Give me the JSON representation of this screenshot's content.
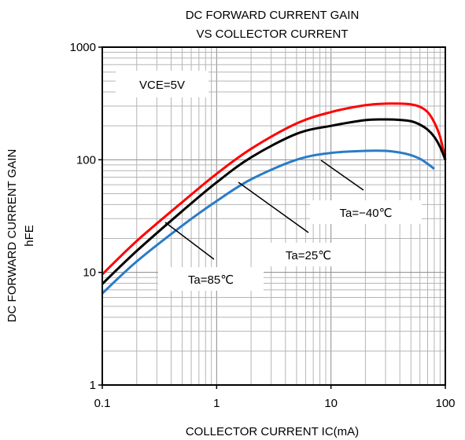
{
  "chart_data": {
    "type": "line",
    "title_lines": [
      "DC FORWARD CURRENT GAIN",
      "VS COLLECTOR CURRENT"
    ],
    "xlabel": "COLLECTOR CURRENT  IC(mA)",
    "ylabel_lines": [
      "DC FORWARD CURRENT GAIN",
      "hFE"
    ],
    "x_scale": "log",
    "y_scale": "log",
    "xlim": [
      0.1,
      100
    ],
    "ylim": [
      1,
      1000
    ],
    "x_ticks": [
      "0.1",
      "1",
      "10",
      "100"
    ],
    "y_ticks": [
      "1",
      "10",
      "100",
      "1000"
    ],
    "grid": true,
    "condition_label": "VCE=5V",
    "series": [
      {
        "name": "Ta=-40°C",
        "color": "#ff0000",
        "x": [
          0.1,
          0.2,
          0.5,
          1,
          2,
          5,
          10,
          20,
          30,
          40,
          50,
          60,
          70,
          80,
          90,
          100
        ],
        "y": [
          9.6,
          19,
          42,
          75,
          125,
          210,
          265,
          305,
          315,
          315,
          310,
          295,
          265,
          215,
          160,
          100
        ]
      },
      {
        "name": "Ta=25°C",
        "color": "#000000",
        "x": [
          0.1,
          0.2,
          0.5,
          1,
          2,
          5,
          10,
          20,
          30,
          40,
          50,
          60,
          70,
          80,
          90,
          100
        ],
        "y": [
          7.9,
          15.5,
          35,
          63,
          105,
          170,
          200,
          225,
          228,
          226,
          220,
          205,
          185,
          160,
          130,
          100
        ]
      },
      {
        "name": "Ta=85°C",
        "color": "#2a7cc7",
        "x": [
          0.1,
          0.2,
          0.5,
          1,
          2,
          5,
          10,
          20,
          30,
          40,
          50,
          60,
          70,
          80
        ],
        "y": [
          6.5,
          12.5,
          26,
          43,
          67,
          100,
          115,
          120,
          120,
          116,
          110,
          102,
          92,
          83
        ]
      }
    ],
    "annotations": [
      {
        "text": "Ta=−40℃",
        "for_series": "Ta=-40°C"
      },
      {
        "text": "Ta=25℃",
        "for_series": "Ta=25°C"
      },
      {
        "text": "Ta=85℃",
        "for_series": "Ta=85°C"
      }
    ]
  }
}
